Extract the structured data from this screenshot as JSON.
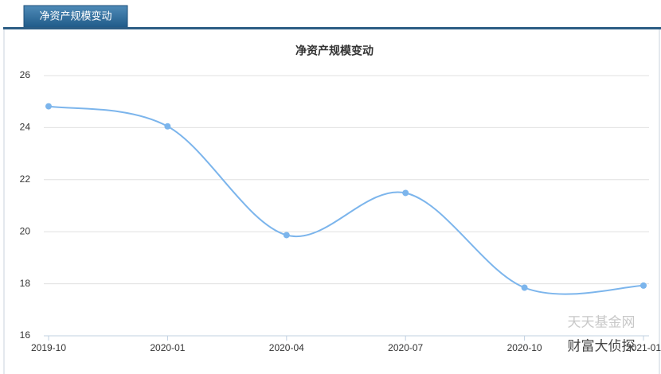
{
  "tab": "净资产规模变动",
  "watermarks": [
    "天天基金网",
    "财富大侦探"
  ],
  "chart_data": {
    "type": "line",
    "title": "净资产规模变动",
    "categories": [
      "2019-10",
      "2020-01",
      "2020-04",
      "2020-07",
      "2020-10",
      "2021-01"
    ],
    "values": [
      24.82,
      24.05,
      19.87,
      21.49,
      17.85,
      17.93
    ],
    "color": "#7cb5ec",
    "ylim": [
      16,
      26
    ],
    "yticks": [
      16,
      18,
      20,
      22,
      24,
      26
    ],
    "grid": true,
    "smooth": true
  }
}
